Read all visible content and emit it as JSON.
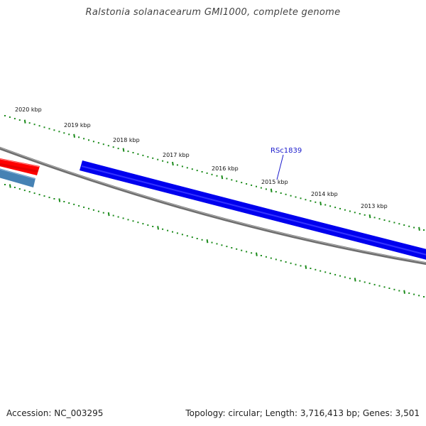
{
  "title": "Ralstonia solanacearum GMI1000, complete genome",
  "footer": {
    "accession": "Accession: NC_003295",
    "summary": "Topology: circular; Length: 3,716,413 bp; Genes: 3,501"
  },
  "colors": {
    "tick": "#1a8a1a",
    "backbone": "#7a7a7a",
    "gene_forward": "#0000ee",
    "gene_red": "#ff0000",
    "gene_steel": "#4682b4",
    "gene_label": "#1a1acc"
  },
  "scale_labels": [
    "2020 kbp",
    "2019 kbp",
    "2018 kbp",
    "2017 kbp",
    "2016 kbp",
    "2015 kbp",
    "2014 kbp",
    "2013 kbp"
  ],
  "genes": [
    {
      "label": "RSc1839",
      "color_key": "gene_forward"
    }
  ]
}
